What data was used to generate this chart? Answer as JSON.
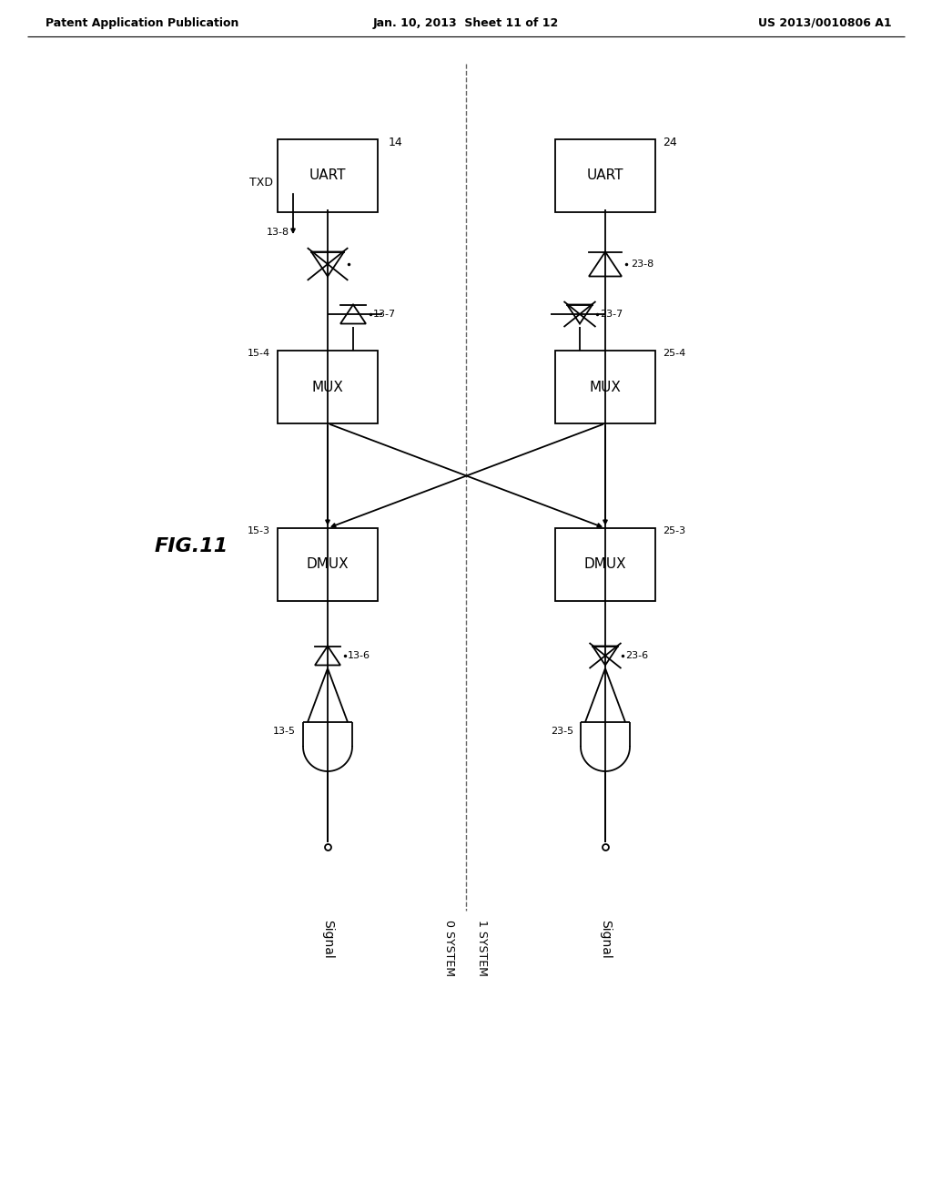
{
  "title_left": "Patent Application Publication",
  "title_mid": "Jan. 10, 2013  Sheet 11 of 12",
  "title_right": "US 2013/0010806 A1",
  "fig_label": "FIG.11",
  "background": "#ffffff",
  "line_color": "#000000",
  "left_system_label": "0 SYSTEM",
  "right_system_label": "1 SYSTEM",
  "signal_left": "Signal",
  "signal_right": "Signal",
  "txd_label": "TXD"
}
